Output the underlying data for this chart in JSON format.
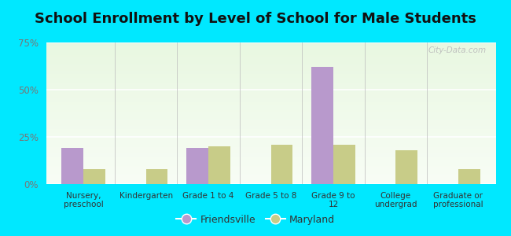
{
  "title": "School Enrollment by Level of School for Male Students",
  "categories": [
    "Nursery,\npreschool",
    "Kindergarten",
    "Grade 1 to 4",
    "Grade 5 to 8",
    "Grade 9 to\n12",
    "College\nundergrad",
    "Graduate or\nprofessional"
  ],
  "friendsville": [
    19,
    0,
    19,
    0,
    62,
    0,
    0
  ],
  "maryland": [
    8,
    8,
    20,
    21,
    21,
    18,
    8
  ],
  "friendsville_color": "#b899cc",
  "maryland_color": "#c8cc88",
  "ylim": [
    0,
    75
  ],
  "yticks": [
    0,
    25,
    50,
    75
  ],
  "ytick_labels": [
    "0%",
    "25%",
    "50%",
    "75%"
  ],
  "background_outer": "#00e8ff",
  "bar_width": 0.35,
  "title_fontsize": 13,
  "legend_labels": [
    "Friendsville",
    "Maryland"
  ],
  "watermark": "City-Data.com"
}
